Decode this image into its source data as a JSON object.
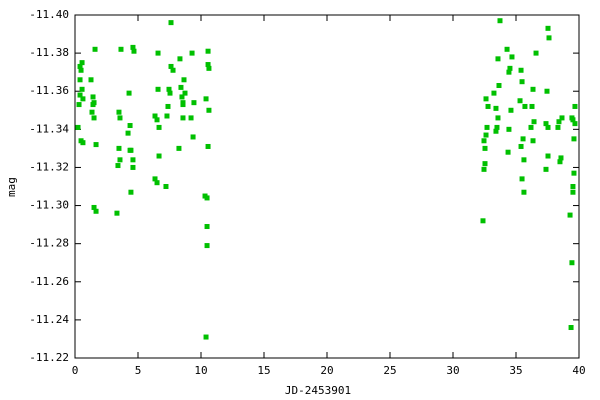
{
  "chart_data": {
    "type": "scatter",
    "xlabel": "JD-2453901",
    "ylabel": "mag",
    "color": "#00c000",
    "xlim": [
      0,
      40
    ],
    "xticks": [
      0,
      5,
      10,
      15,
      20,
      25,
      30,
      35,
      40
    ],
    "ylim": [
      -11.22,
      -11.4
    ],
    "yticks": [
      -11.22,
      -11.24,
      -11.26,
      -11.28,
      {
        "value": -11.3,
        "label": "-11.30"
      },
      -11.32,
      -11.34,
      -11.36,
      -11.38,
      {
        "value": -11.4,
        "label": "-11.40"
      }
    ],
    "x": [
      0.24,
      0.4,
      0.48,
      0.56,
      0.4,
      0.4,
      0.32,
      0.56,
      0.48,
      0.63,
      0.63,
      1.27,
      1.43,
      1.51,
      1.59,
      1.35,
      1.51,
      1.67,
      1.51,
      1.67,
      1.43,
      3.33,
      3.49,
      3.57,
      3.65,
      3.41,
      3.57,
      3.49,
      4.29,
      4.37,
      4.21,
      4.44,
      4.6,
      4.6,
      4.44,
      4.6,
      4.68,
      4.37,
      6.35,
      6.51,
      6.59,
      6.35,
      6.51,
      6.67,
      6.67,
      6.59,
      7.3,
      7.38,
      7.22,
      7.46,
      7.62,
      7.62,
      7.78,
      7.54,
      8.33,
      8.41,
      8.49,
      8.57,
      8.57,
      8.25,
      8.65,
      8.73,
      8.57,
      9.29,
      9.21,
      9.37,
      9.44,
      10.32,
      10.4,
      10.48,
      10.56,
      10.56,
      10.48,
      10.48,
      10.4,
      10.63,
      10.63,
      10.56,
      32.38,
      32.46,
      32.54,
      32.46,
      32.62,
      32.62,
      32.7,
      32.78,
      32.54,
      33.25,
      33.41,
      33.49,
      33.57,
      33.57,
      33.73,
      33.65,
      33.41,
      34.29,
      34.44,
      34.52,
      34.6,
      34.37,
      34.68,
      34.44,
      35.32,
      35.4,
      35.48,
      35.48,
      35.63,
      35.56,
      35.63,
      35.71,
      35.4,
      36.27,
      36.35,
      36.43,
      36.59,
      36.35,
      36.19,
      37.38,
      37.46,
      37.54,
      37.62,
      37.54,
      37.38,
      37.54,
      38.41,
      38.57,
      38.33,
      38.49,
      38.65,
      39.29,
      39.44,
      39.37,
      39.52,
      39.52,
      39.6,
      39.44,
      39.68,
      39.6,
      39.68,
      39.52
    ],
    "values": [
      -11.341,
      -11.373,
      -11.371,
      -11.375,
      -11.366,
      -11.358,
      -11.353,
      -11.361,
      -11.334,
      -11.333,
      -11.356,
      -11.366,
      -11.357,
      -11.354,
      -11.382,
      -11.349,
      -11.346,
      -11.332,
      -11.299,
      -11.297,
      -11.353,
      -11.296,
      -11.349,
      -11.346,
      -11.382,
      -11.321,
      -11.324,
      -11.33,
      -11.359,
      -11.342,
      -11.338,
      -11.329,
      -11.324,
      -11.32,
      -11.307,
      -11.383,
      -11.381,
      -11.329,
      -11.347,
      -11.345,
      -11.38,
      -11.314,
      -11.312,
      -11.341,
      -11.326,
      -11.361,
      -11.347,
      -11.352,
      -11.31,
      -11.361,
      -11.396,
      -11.373,
      -11.371,
      -11.359,
      -11.377,
      -11.362,
      -11.357,
      -11.353,
      -11.346,
      -11.33,
      -11.366,
      -11.359,
      -11.354,
      -11.38,
      -11.346,
      -11.336,
      -11.354,
      -11.305,
      -11.356,
      -11.304,
      -11.381,
      -11.331,
      -11.289,
      -11.279,
      -11.231,
      -11.372,
      -11.35,
      -11.374,
      -11.292,
      -11.319,
      -11.322,
      -11.334,
      -11.337,
      -11.356,
      -11.341,
      -11.352,
      -11.33,
      -11.359,
      -11.339,
      -11.341,
      -11.346,
      -11.377,
      -11.397,
      -11.363,
      -11.351,
      -11.382,
      -11.37,
      -11.372,
      -11.35,
      -11.328,
      -11.378,
      -11.34,
      -11.355,
      -11.371,
      -11.365,
      -11.314,
      -11.307,
      -11.335,
      -11.324,
      -11.352,
      -11.331,
      -11.352,
      -11.361,
      -11.344,
      -11.38,
      -11.334,
      -11.341,
      -11.319,
      -11.36,
      -11.393,
      -11.388,
      -11.341,
      -11.343,
      -11.326,
      -11.344,
      -11.325,
      -11.341,
      -11.323,
      -11.346,
      -11.295,
      -11.27,
      -11.236,
      -11.31,
      -11.307,
      -11.317,
      -11.346,
      -11.352,
      -11.335,
      -11.343,
      -11.345
    ]
  }
}
